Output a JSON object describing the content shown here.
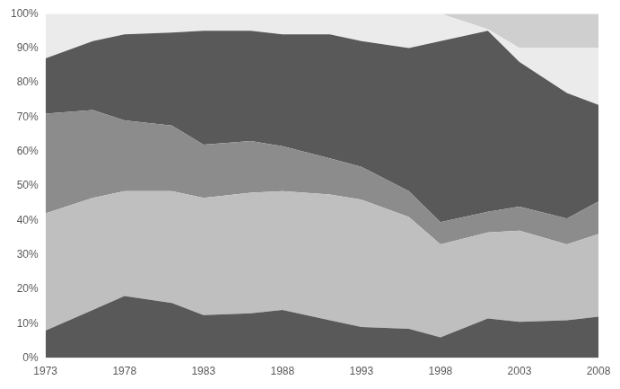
{
  "chart_data": {
    "type": "area",
    "stacked": true,
    "grid": false,
    "x": [
      1973,
      1976,
      1978,
      1981,
      1983,
      1986,
      1988,
      1991,
      1993,
      1996,
      1998,
      2001,
      2003,
      2006,
      2008
    ],
    "xlim": [
      1973,
      2008
    ],
    "xticks": [
      1973,
      1978,
      1983,
      1988,
      1993,
      1998,
      2003,
      2008
    ],
    "ylim": [
      0,
      100
    ],
    "yticks": [
      {
        "value": 0,
        "label": "0%"
      },
      {
        "value": 10,
        "label": "10%"
      },
      {
        "value": 20,
        "label": "20%"
      },
      {
        "value": 30,
        "label": "30%"
      },
      {
        "value": 40,
        "label": "40%"
      },
      {
        "value": 50,
        "label": "50%"
      },
      {
        "value": 60,
        "label": "60%"
      },
      {
        "value": 70,
        "label": "70%"
      },
      {
        "value": 80,
        "label": "80%"
      },
      {
        "value": 90,
        "label": "90%"
      },
      {
        "value": 100,
        "label": "100%"
      }
    ],
    "series": [
      {
        "color": "#595959",
        "values": [
          8,
          14,
          18,
          16,
          12.5,
          13,
          14,
          11,
          9,
          8.5,
          6,
          11.5,
          10.5,
          11,
          12
        ]
      },
      {
        "color": "#bfbfbf",
        "values": [
          34,
          32.5,
          30.5,
          32.5,
          34,
          35,
          34.5,
          36.5,
          37,
          32.5,
          27,
          25,
          26.5,
          22,
          24
        ]
      },
      {
        "color": "#8c8c8c",
        "values": [
          29,
          25.5,
          20.5,
          19,
          15.5,
          15,
          13,
          10.5,
          9.5,
          7.5,
          6.5,
          6,
          7,
          7.5,
          9.5
        ]
      },
      {
        "color": "#595959",
        "values": [
          16,
          20,
          25,
          27,
          33,
          32,
          32.5,
          36,
          36.5,
          41.5,
          52.5,
          52.5,
          42,
          36.5,
          28
        ]
      },
      {
        "color": "#ebebeb",
        "values": [
          13,
          8,
          6,
          5.5,
          5,
          5,
          6,
          6,
          8,
          10,
          8,
          0.5,
          4,
          13,
          16.5
        ]
      },
      {
        "color": "#cfcfcf",
        "values": [
          0,
          0,
          0,
          0,
          0,
          0,
          0,
          0,
          0,
          0,
          0,
          4.5,
          10,
          10,
          10
        ]
      }
    ]
  }
}
